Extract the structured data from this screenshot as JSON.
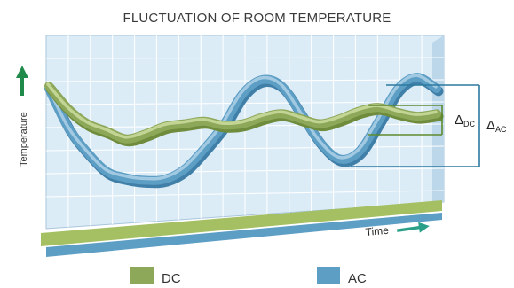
{
  "chart_data": {
    "type": "line",
    "title": "FLUCTUATION OF ROOM TEMPERATURE",
    "xlabel": "Time",
    "ylabel": "Temperature",
    "legend_position": "bottom",
    "grid": true,
    "x": [
      0,
      0.05,
      0.1,
      0.15,
      0.2,
      0.25,
      0.3,
      0.35,
      0.4,
      0.45,
      0.5,
      0.55,
      0.6,
      0.65,
      0.7,
      0.75,
      0.8,
      0.85,
      0.9,
      0.95,
      1.0
    ],
    "series": [
      {
        "name": "DC",
        "color": "#8ea85a",
        "values": [
          0.88,
          0.7,
          0.58,
          0.52,
          0.46,
          0.5,
          0.56,
          0.58,
          0.6,
          0.57,
          0.58,
          0.63,
          0.66,
          0.62,
          0.58,
          0.62,
          0.68,
          0.71,
          0.67,
          0.64,
          0.66
        ]
      },
      {
        "name": "AC",
        "color": "#5d9ec5",
        "values": [
          0.86,
          0.55,
          0.35,
          0.2,
          0.15,
          0.13,
          0.14,
          0.22,
          0.38,
          0.57,
          0.82,
          0.93,
          0.88,
          0.66,
          0.43,
          0.3,
          0.36,
          0.6,
          0.86,
          0.95,
          0.86
        ]
      }
    ],
    "annotations": [
      {
        "label": "Δ",
        "subscript": "DC"
      },
      {
        "label": "Δ",
        "subscript": "AC"
      }
    ]
  },
  "colors": {
    "panel_fill": "#dcecf7",
    "grid": "#ffffff",
    "panel_side": "#bcd7e9",
    "base_front": "#6a8a3a",
    "base_green_top": "#a4c063",
    "base_blue": "#5d9ec5",
    "arrow_green": "#1f8a4a",
    "arrow_teal": "#2ba089",
    "bracket": "#2d7aa0"
  },
  "icons": {
    "y_arrow": "up-arrow-icon",
    "x_arrow": "right-arrow-icon"
  }
}
